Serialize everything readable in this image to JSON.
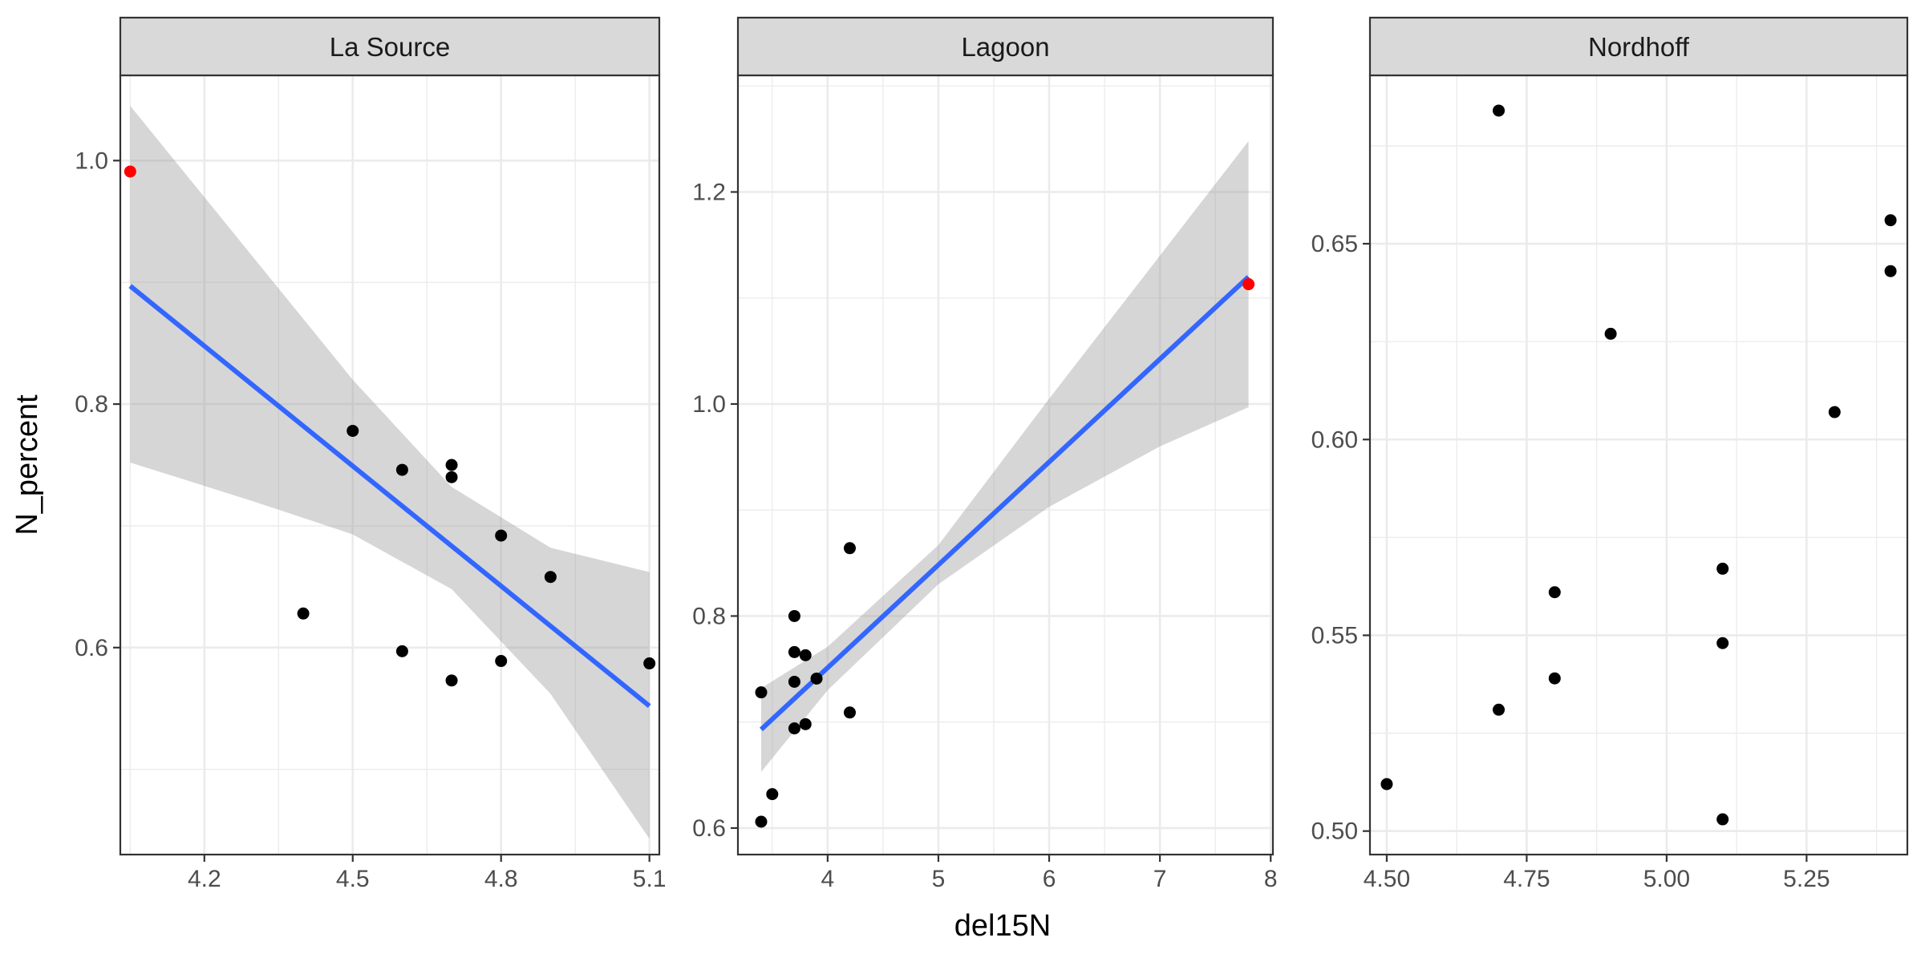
{
  "chart_data": {
    "type": "scatter",
    "xlabel": "del15N",
    "ylabel": "N_percent",
    "grid": true,
    "colors": {
      "point": "#000000",
      "highlight": "#ff0000",
      "fit_line": "#3366ff",
      "ribbon": "#999999",
      "strip_fill": "#d9d9d9",
      "grid": "#ebebeb",
      "frame": "#333333"
    },
    "panels": [
      {
        "title": "La Source",
        "xlim": [
          4.03,
          5.12
        ],
        "ylim": [
          0.43,
          1.07
        ],
        "x_ticks": [
          4.2,
          4.5,
          4.8,
          5.1
        ],
        "x_tick_labels": [
          "4.2",
          "4.5",
          "4.8",
          "5.1"
        ],
        "y_ticks": [
          0.6,
          0.8,
          1.0
        ],
        "y_tick_labels": [
          "0.6",
          "0.8",
          "1.0"
        ],
        "points": [
          {
            "x": 4.4,
            "y": 0.628
          },
          {
            "x": 4.5,
            "y": 0.778
          },
          {
            "x": 4.6,
            "y": 0.746
          },
          {
            "x": 4.6,
            "y": 0.597
          },
          {
            "x": 4.7,
            "y": 0.75
          },
          {
            "x": 4.7,
            "y": 0.74
          },
          {
            "x": 4.7,
            "y": 0.573
          },
          {
            "x": 4.8,
            "y": 0.692
          },
          {
            "x": 4.8,
            "y": 0.589
          },
          {
            "x": 4.9,
            "y": 0.658
          },
          {
            "x": 5.1,
            "y": 0.587
          }
        ],
        "highlight_points": [
          {
            "x": 4.05,
            "y": 0.991
          }
        ],
        "fit": {
          "x": [
            4.05,
            5.1
          ],
          "y": [
            0.897,
            0.552
          ]
        },
        "ribbon": {
          "x": [
            4.05,
            4.3,
            4.5,
            4.7,
            4.9,
            5.1
          ],
          "upper": [
            1.045,
            0.92,
            0.82,
            0.732,
            0.682,
            0.662
          ],
          "lower": [
            0.752,
            0.72,
            0.693,
            0.648,
            0.562,
            0.443
          ]
        }
      },
      {
        "title": "Lagoon",
        "xlim": [
          3.19,
          8.02
        ],
        "ylim": [
          0.575,
          1.31
        ],
        "x_ticks": [
          4,
          5,
          6,
          7,
          8
        ],
        "x_tick_labels": [
          "4",
          "5",
          "6",
          "7",
          "8"
        ],
        "y_ticks": [
          0.6,
          0.8,
          1.0,
          1.2
        ],
        "y_tick_labels": [
          "0.6",
          "0.8",
          "1.0",
          "1.2"
        ],
        "points": [
          {
            "x": 3.4,
            "y": 0.728
          },
          {
            "x": 3.4,
            "y": 0.606
          },
          {
            "x": 3.5,
            "y": 0.632
          },
          {
            "x": 3.7,
            "y": 0.8
          },
          {
            "x": 3.7,
            "y": 0.766
          },
          {
            "x": 3.7,
            "y": 0.738
          },
          {
            "x": 3.7,
            "y": 0.694
          },
          {
            "x": 3.8,
            "y": 0.763
          },
          {
            "x": 3.8,
            "y": 0.698
          },
          {
            "x": 3.9,
            "y": 0.741
          },
          {
            "x": 4.2,
            "y": 0.864
          },
          {
            "x": 4.2,
            "y": 0.709
          }
        ],
        "highlight_points": [
          {
            "x": 7.8,
            "y": 1.113
          }
        ],
        "fit": {
          "x": [
            3.4,
            7.8
          ],
          "y": [
            0.693,
            1.12
          ]
        },
        "ribbon": {
          "x": [
            3.4,
            4.0,
            5.0,
            6.0,
            7.0,
            7.8
          ],
          "upper": [
            0.732,
            0.771,
            0.867,
            1.005,
            1.14,
            1.248
          ],
          "lower": [
            0.653,
            0.73,
            0.83,
            0.903,
            0.96,
            0.997
          ]
        }
      },
      {
        "title": "Nordhoff",
        "xlim": [
          4.47,
          5.43
        ],
        "ylim": [
          0.494,
          0.693
        ],
        "x_ticks": [
          4.5,
          4.75,
          5.0,
          5.25
        ],
        "x_tick_labels": [
          "4.50",
          "4.75",
          "5.00",
          "5.25"
        ],
        "y_ticks": [
          0.5,
          0.55,
          0.6,
          0.65
        ],
        "y_tick_labels": [
          "0.50",
          "0.55",
          "0.60",
          "0.65"
        ],
        "points": [
          {
            "x": 4.5,
            "y": 0.512
          },
          {
            "x": 4.7,
            "y": 0.684
          },
          {
            "x": 4.7,
            "y": 0.531
          },
          {
            "x": 4.8,
            "y": 0.561
          },
          {
            "x": 4.8,
            "y": 0.539
          },
          {
            "x": 4.9,
            "y": 0.627
          },
          {
            "x": 5.1,
            "y": 0.567
          },
          {
            "x": 5.1,
            "y": 0.548
          },
          {
            "x": 5.1,
            "y": 0.503
          },
          {
            "x": 5.3,
            "y": 0.607
          },
          {
            "x": 5.4,
            "y": 0.656
          },
          {
            "x": 5.4,
            "y": 0.643
          }
        ],
        "highlight_points": []
      }
    ]
  }
}
